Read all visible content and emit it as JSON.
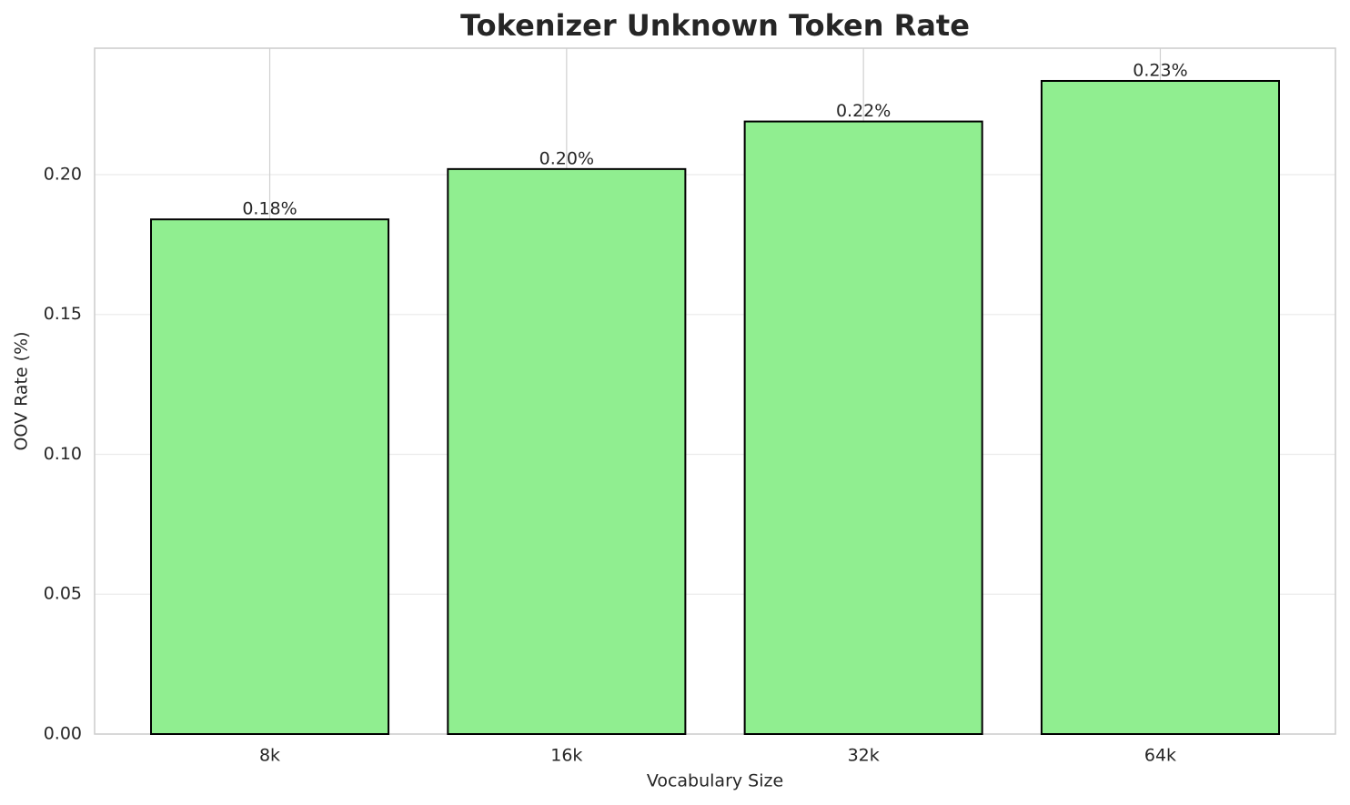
{
  "chart_data": {
    "type": "bar",
    "title": "Tokenizer Unknown Token Rate",
    "x_label": "Vocabulary Size",
    "y_label": "OOV Rate (%)",
    "categories": [
      "8k",
      "16k",
      "32k",
      "64k"
    ],
    "values": [
      0.184,
      0.202,
      0.219,
      0.2335
    ],
    "value_labels": [
      "0.18%",
      "0.20%",
      "0.22%",
      "0.23%"
    ],
    "color": "#90ee90",
    "edge_color": "#000000",
    "ylim": [
      0,
      0.2452
    ],
    "yticks": [
      {
        "value": 0,
        "label": "0.00"
      },
      0.05,
      {
        "value": 0.1,
        "label": "0.10"
      },
      0.15,
      {
        "value": 0.2,
        "label": "0.20"
      }
    ],
    "grid": true
  }
}
